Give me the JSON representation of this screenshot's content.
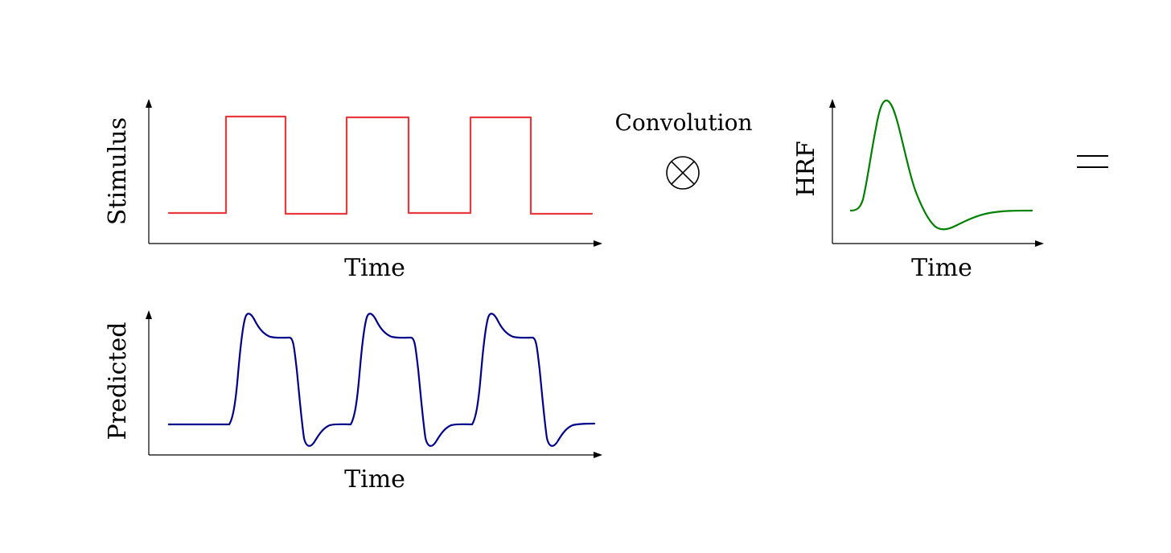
{
  "panels": {
    "stimulus": {
      "xlabel": "Time",
      "ylabel": "Stimulus",
      "color": "#e8393f",
      "shape": "boxcar",
      "blocks": 3
    },
    "hrf": {
      "xlabel": "Time",
      "ylabel": "HRF",
      "color": "#008000",
      "shape": "peak-then-undershoot"
    },
    "predicted": {
      "xlabel": "Time",
      "ylabel": "Predicted",
      "color": "#00008b",
      "shape": "convolved-response",
      "blocks": 3
    }
  },
  "operators": {
    "convolution_label": "Convolution",
    "convolution_symbol": "⊗",
    "equals_symbol": "="
  }
}
